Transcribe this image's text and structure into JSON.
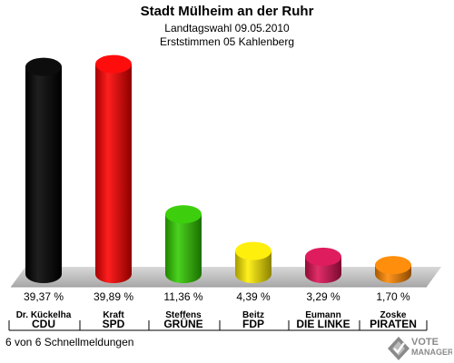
{
  "header": {
    "title": "Stadt Mülheim an der Ruhr",
    "subtitle1": "Landtagswahl 09.05.2010",
    "subtitle2": "Erststimmen 05 Kahlenberg"
  },
  "footer": {
    "status": "6 von 6 Schnellmeldungen"
  },
  "logo": {
    "line1": "VOTE",
    "line2": "MANAGER"
  },
  "chart_data": {
    "type": "bar",
    "title": "Stadt Mülheim an der Ruhr",
    "categories": [
      "CDU",
      "SPD",
      "GRÜNE",
      "FDP",
      "DIE LINKE",
      "PIRATEN"
    ],
    "candidates": [
      "Dr. Kückelha",
      "Kraft",
      "Steffens",
      "Beitz",
      "Eumann",
      "Zoske"
    ],
    "values": [
      39.37,
      39.89,
      11.36,
      4.39,
      3.29,
      1.7
    ],
    "value_labels": [
      "39,37 %",
      "39,89 %",
      "11,36 %",
      "4,39 %",
      "3,29 %",
      "1,70 %"
    ],
    "colors": [
      "#000000",
      "#ff0000",
      "#33cc00",
      "#ffee00",
      "#dd1155",
      "#ff8800"
    ],
    "ylim": [
      0,
      40
    ],
    "grid": false,
    "legend": "none"
  }
}
